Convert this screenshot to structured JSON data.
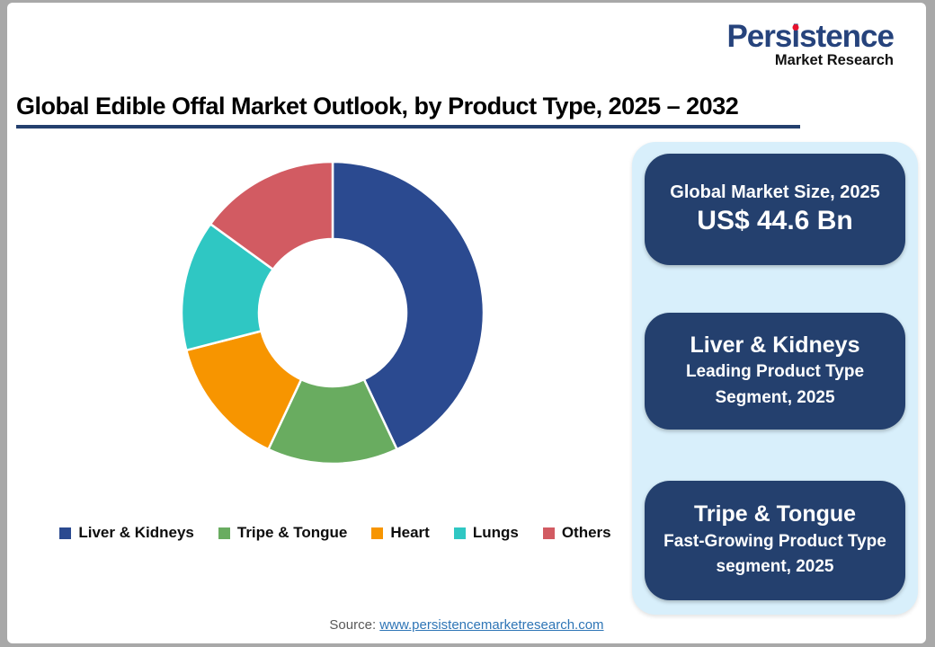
{
  "logo": {
    "name_pre": "Pers",
    "name_i": "i",
    "name_post": "stence",
    "tagline": "Market Research",
    "name_color": "#26437c",
    "dot_color": "#e8112d"
  },
  "header": {
    "title": "Global Edible Offal Market Outlook, by Product Type, 2025 – 2032",
    "underline_color": "#24406e"
  },
  "chart_data": {
    "type": "pie",
    "subtype": "donut",
    "title": "Global Edible Offal Market Outlook, by Product Type, 2025 – 2032",
    "categories": [
      "Liver & Kidneys",
      "Tripe & Tongue",
      "Heart",
      "Lungs",
      "Others"
    ],
    "values": [
      43,
      14,
      14,
      14,
      15
    ],
    "values_note": "percent share estimated from arc angles; no numeric slice labels shown",
    "colors": [
      "#2b4a90",
      "#69ac60",
      "#f79500",
      "#2fc7c3",
      "#d25b62"
    ],
    "start_angle_deg": 0,
    "direction": "clockwise",
    "inner_radius_ratio": 0.49,
    "legend_position": "bottom"
  },
  "legend": {
    "items": [
      {
        "label": "Liver & Kidneys",
        "color": "#2b4a90"
      },
      {
        "label": "Tripe & Tongue",
        "color": "#69ac60"
      },
      {
        "label": "Heart",
        "color": "#f79500"
      },
      {
        "label": "Lungs",
        "color": "#2fc7c3"
      },
      {
        "label": "Others",
        "color": "#d25b62"
      }
    ]
  },
  "panel": {
    "bg_color": "#d8effb",
    "card_color": "#24406e",
    "cards": [
      {
        "line1": "Global Market Size, 2025",
        "line2": "US$ 44.6 Bn"
      },
      {
        "line1": "Liver & Kidneys",
        "line2": "Leading Product Type Segment, 2025"
      },
      {
        "line1": "Tripe & Tongue",
        "line2": "Fast-Growing Product Type segment, 2025"
      }
    ]
  },
  "footer": {
    "source_label": "Source:",
    "source_link": "www.persistencemarketresearch.com"
  }
}
